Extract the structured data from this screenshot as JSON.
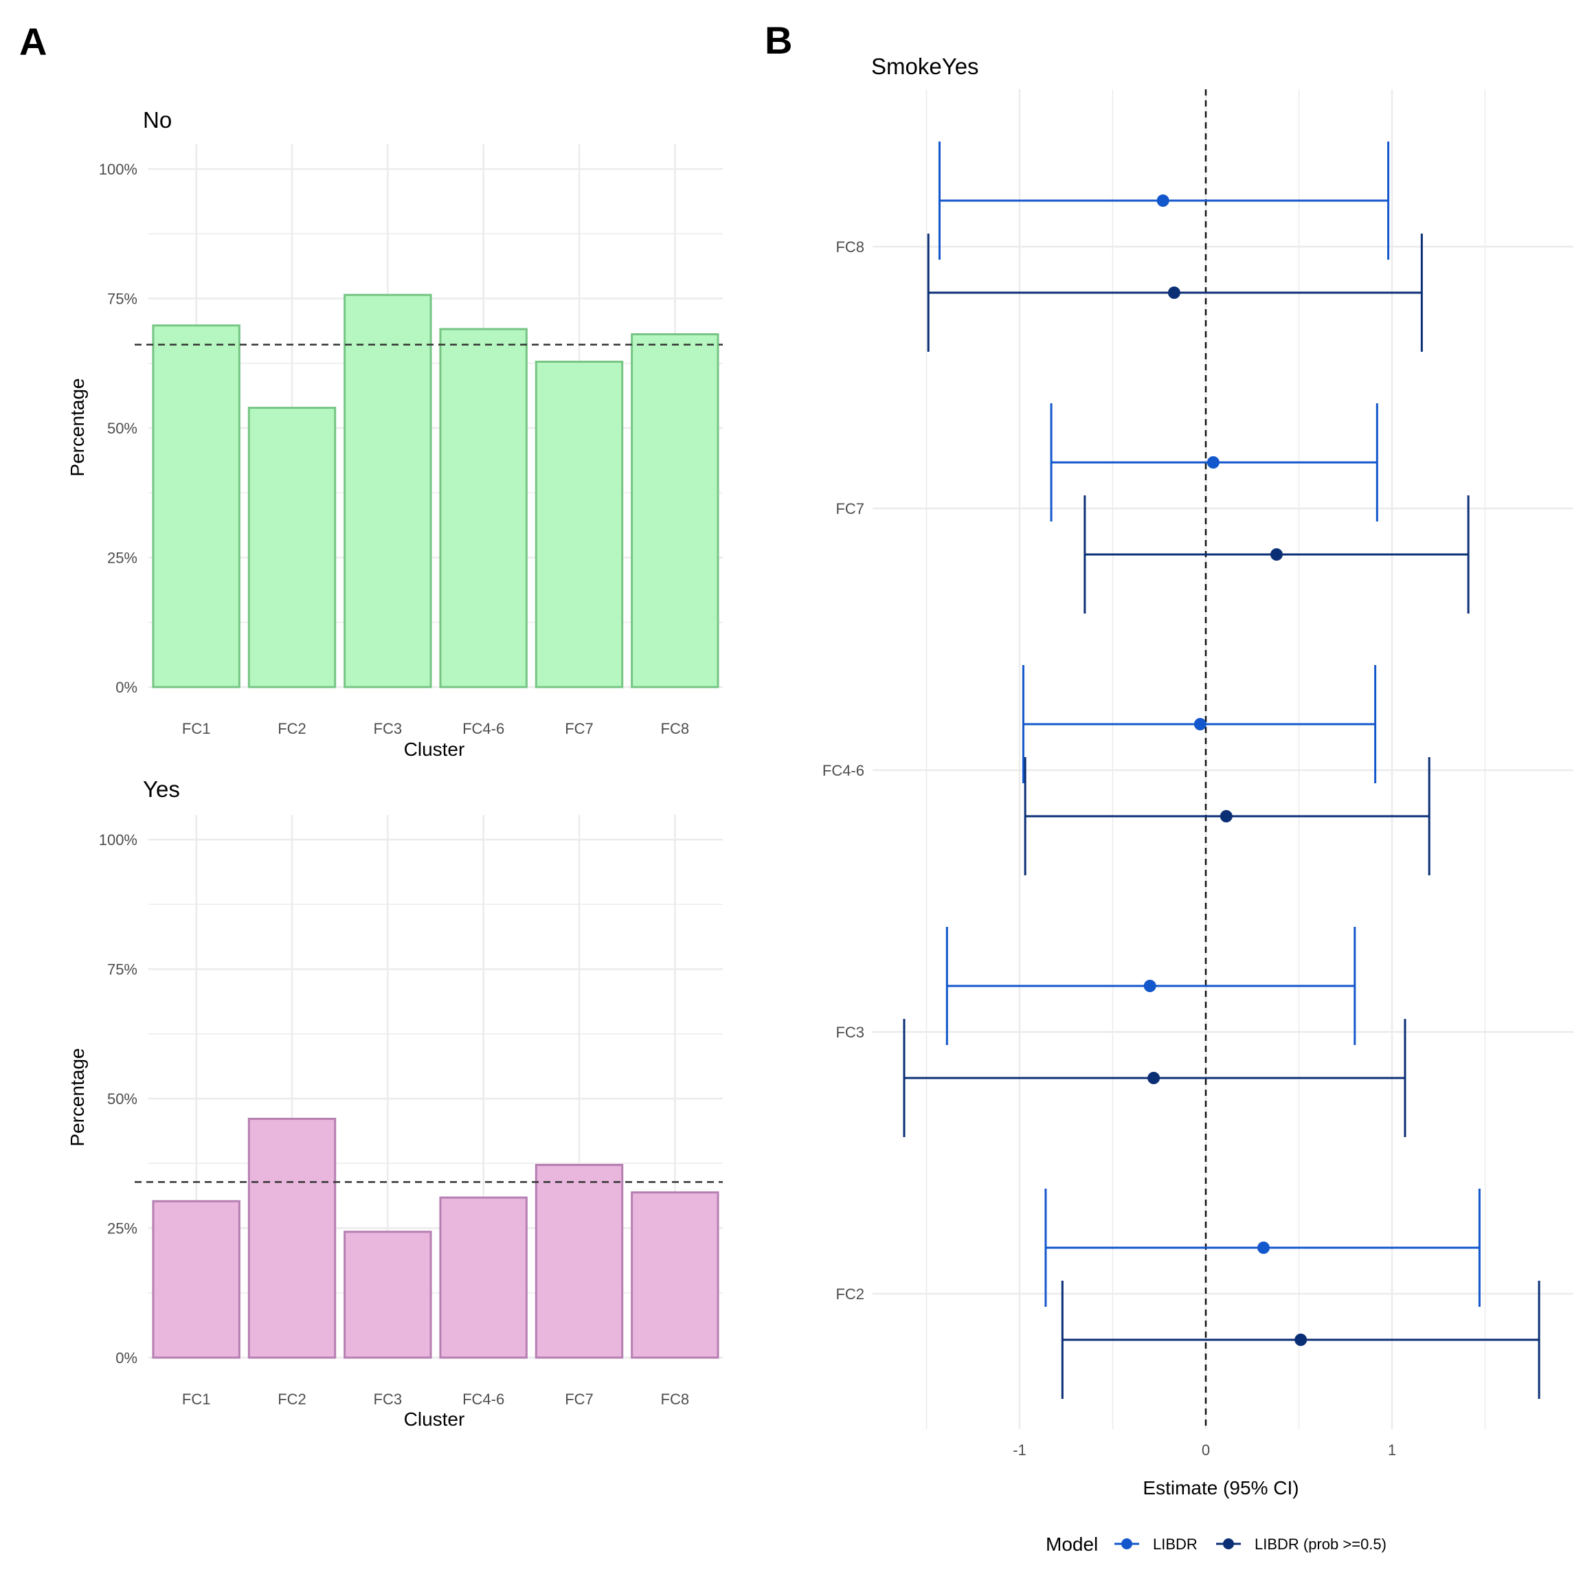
{
  "panel_labels": [
    "A",
    "B"
  ],
  "colors": {
    "no_fill": "#b6f7c1",
    "no_stroke": "#76c584",
    "yes_fill": "#e9b6dd",
    "yes_stroke": "#b67fb2",
    "grid": "#ebebeb",
    "reference_line": "#333333",
    "libdr": "#1357cc",
    "libdr_prob": "#0b2f75"
  },
  "chart_data": [
    {
      "type": "bar",
      "title": "No",
      "xlabel": "Cluster",
      "ylabel": "Percentage",
      "categories": [
        "FC1",
        "FC2",
        "FC3",
        "FC4-6",
        "FC7",
        "FC8"
      ],
      "values": [
        69.8,
        53.9,
        75.7,
        69.1,
        62.8,
        68.1
      ],
      "reference_line": 66.1,
      "ylim": [
        0,
        100
      ],
      "yticks": [
        "0%",
        "25%",
        "50%",
        "75%",
        "100%"
      ],
      "grid": true
    },
    {
      "type": "bar",
      "title": "Yes",
      "xlabel": "Cluster",
      "ylabel": "Percentage",
      "categories": [
        "FC1",
        "FC2",
        "FC3",
        "FC4-6",
        "FC7",
        "FC8"
      ],
      "values": [
        30.2,
        46.1,
        24.3,
        30.9,
        37.2,
        31.9
      ],
      "reference_line": 33.9,
      "ylim": [
        0,
        100
      ],
      "yticks": [
        "0%",
        "25%",
        "50%",
        "75%",
        "100%"
      ],
      "grid": true
    },
    {
      "type": "scatter",
      "subtype": "forest",
      "title": "SmokeYes",
      "xlabel": "Estimate (95% CI)",
      "ylabel": "",
      "categories": [
        "FC8",
        "FC7",
        "FC4-6",
        "FC3",
        "FC2"
      ],
      "xticks": [
        "-1",
        "0",
        "1"
      ],
      "xlim": [
        -1.6,
        1.9
      ],
      "reference_line": 0,
      "legend": {
        "title": "Model",
        "placement": "bottom",
        "entries": [
          "LIBDR",
          "LIBDR (prob >=0.5)"
        ]
      },
      "series": [
        {
          "name": "LIBDR",
          "estimates": [
            -0.23,
            0.04,
            -0.03,
            -0.3,
            0.31
          ],
          "lower": [
            -1.43,
            -0.83,
            -0.98,
            -1.39,
            -0.86
          ],
          "upper": [
            0.98,
            0.92,
            0.91,
            0.8,
            1.47
          ]
        },
        {
          "name": "LIBDR (prob >=0.5)",
          "estimates": [
            -0.17,
            0.38,
            0.11,
            -0.28,
            0.51
          ],
          "lower": [
            -1.49,
            -0.65,
            -0.97,
            -1.62,
            -0.77
          ],
          "upper": [
            1.16,
            1.41,
            1.2,
            1.07,
            1.79
          ]
        }
      ]
    }
  ]
}
